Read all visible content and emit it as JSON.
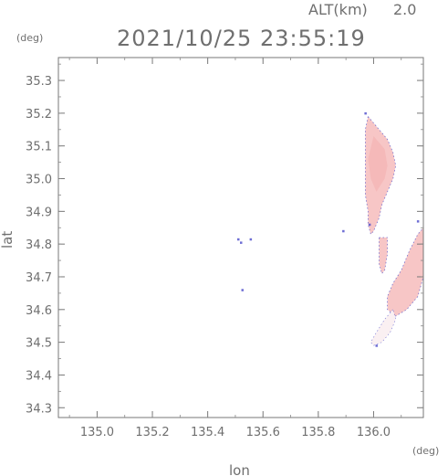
{
  "header": {
    "alt_label": "ALT(km)",
    "alt_value": "2.0",
    "timestamp": "2021/10/25 23:55:19"
  },
  "chart_data": {
    "type": "heatmap",
    "title": "2021/10/25 23:55:19",
    "xlabel": "lon",
    "ylabel": "lat",
    "x_unit": "(deg)",
    "y_unit": "(deg)",
    "xlim": [
      134.86,
      136.18
    ],
    "ylim": [
      34.27,
      35.37
    ],
    "x_ticks": [
      "135.0",
      "135.2",
      "135.4",
      "135.6",
      "135.8",
      "136.0"
    ],
    "y_ticks": [
      "34.3",
      "34.4",
      "34.5",
      "34.6",
      "34.7",
      "34.8",
      "34.9",
      "35.0",
      "35.1",
      "35.2",
      "35.3"
    ],
    "grid": false,
    "colors": {
      "echo_fill": "#f7c6c6",
      "echo_core": "#f3b3b3",
      "echo_edge": "#5555cc",
      "axis": "#6f6f6f"
    },
    "regions": [
      {
        "name": "echo-main",
        "points": [
          [
            135.98,
            35.19
          ],
          [
            136.02,
            35.15
          ],
          [
            136.05,
            35.12
          ],
          [
            136.07,
            35.08
          ],
          [
            136.08,
            35.04
          ],
          [
            136.07,
            35.0
          ],
          [
            136.05,
            34.96
          ],
          [
            136.03,
            34.92
          ],
          [
            136.02,
            34.88
          ],
          [
            136.0,
            34.84
          ],
          [
            135.99,
            34.83
          ],
          [
            135.98,
            34.86
          ],
          [
            135.98,
            34.9
          ],
          [
            135.97,
            34.95
          ],
          [
            135.97,
            35.0
          ],
          [
            135.97,
            35.05
          ],
          [
            135.97,
            35.1
          ],
          [
            135.97,
            35.15
          ]
        ]
      },
      {
        "name": "echo-small",
        "points": [
          [
            136.02,
            34.82
          ],
          [
            136.05,
            34.82
          ],
          [
            136.05,
            34.77
          ],
          [
            136.04,
            34.72
          ],
          [
            136.03,
            34.71
          ],
          [
            136.02,
            34.74
          ],
          [
            136.02,
            34.78
          ]
        ]
      },
      {
        "name": "echo-lower",
        "points": [
          [
            136.18,
            34.85
          ],
          [
            136.18,
            34.7
          ],
          [
            136.16,
            34.64
          ],
          [
            136.12,
            34.6
          ],
          [
            136.08,
            34.58
          ],
          [
            136.05,
            34.6
          ],
          [
            136.05,
            34.64
          ],
          [
            136.07,
            34.68
          ],
          [
            136.1,
            34.72
          ],
          [
            136.13,
            34.78
          ],
          [
            136.16,
            34.83
          ]
        ]
      },
      {
        "name": "echo-faint",
        "points": [
          [
            136.07,
            34.6
          ],
          [
            136.04,
            34.57
          ],
          [
            136.01,
            34.53
          ],
          [
            135.99,
            34.5
          ],
          [
            136.0,
            34.49
          ],
          [
            136.03,
            34.5
          ],
          [
            136.06,
            34.53
          ],
          [
            136.08,
            34.57
          ]
        ]
      }
    ],
    "speckles": [
      [
        135.51,
        34.815
      ],
      [
        135.52,
        34.805
      ],
      [
        135.555,
        34.815
      ],
      [
        135.525,
        34.66
      ],
      [
        135.89,
        34.84
      ],
      [
        135.97,
        35.2
      ],
      [
        135.985,
        34.86
      ],
      [
        136.01,
        34.49
      ],
      [
        136.16,
        34.87
      ]
    ]
  }
}
